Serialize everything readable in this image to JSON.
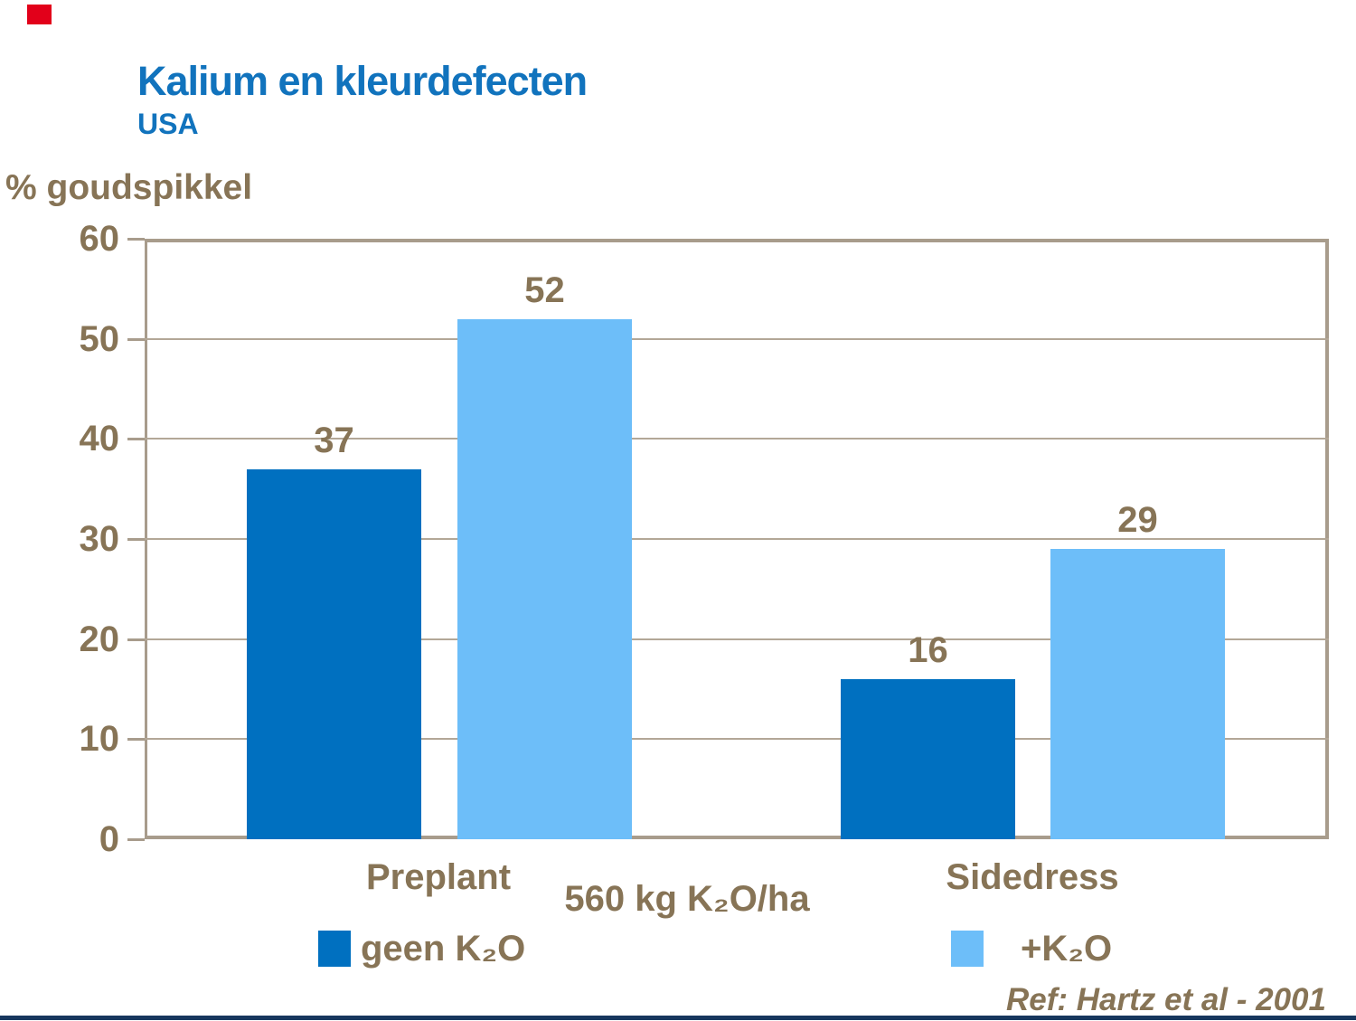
{
  "slide": {
    "title": "Kalium en kleurdefecten",
    "subtitle": "USA",
    "reference": "Ref: Hartz et al - 2001"
  },
  "colors": {
    "title_blue": "#1173BD",
    "text_brown": "#877456",
    "axis_tan": "#A89C8C",
    "grid_tan": "#B3A797",
    "series_dark_blue": "#0070C0",
    "series_light_blue": "#6DBEF9",
    "footer_bar_navy": "#17375E",
    "corner_red": "#E2001A"
  },
  "chart_data": {
    "type": "bar",
    "title": "Kalium en kleurdefecten",
    "subtitle": "USA",
    "ylabel": "% goudspikkel",
    "categories": [
      "Preplant",
      "Sidedress"
    ],
    "series": [
      {
        "name": "geen K₂O",
        "color": "#0070C0",
        "values": [
          37,
          16
        ]
      },
      {
        "name": "+K₂O",
        "color": "#6DBEF9",
        "values": [
          52,
          29
        ]
      }
    ],
    "axis_note": "560 kg K₂O/ha",
    "ylim": [
      0,
      60
    ],
    "yticks": [
      0,
      10,
      20,
      30,
      40,
      50,
      60
    ],
    "grid": true,
    "legend_position": "bottom",
    "value_labels": true
  }
}
